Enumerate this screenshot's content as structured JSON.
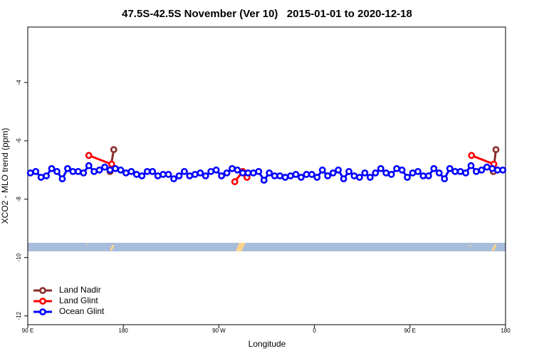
{
  "chart_data": {
    "type": "line",
    "title": "47.5S-42.5S November (Ver 10)   2015-01-01 to 2020-12-18",
    "xlabel": "Longitude",
    "ylabel": "XCO2 - MLO trend (ppm)",
    "xlim": [
      90,
      540
    ],
    "ylim": [
      -12.3,
      -2.1
    ],
    "xticks": [
      {
        "value": 90,
        "label": "90 E"
      },
      {
        "value": 180,
        "label": "180"
      },
      {
        "value": 270,
        "label": "90 W"
      },
      {
        "value": 360,
        "label": "0"
      },
      {
        "value": 450,
        "label": "90 E"
      },
      {
        "value": 540,
        "label": "180"
      }
    ],
    "yticks": [
      -4,
      -6,
      -8,
      -10,
      -12
    ],
    "legend": "lower left",
    "series": [
      {
        "name": "Land Nadir",
        "color": "#8b2b2b",
        "x": [
          167.5,
          171,
          null,
          528.5,
          531
        ],
        "values": [
          -7.05,
          -6.3,
          null,
          -7.05,
          -6.3
        ]
      },
      {
        "name": "Land Glint",
        "color": "#ff0000",
        "x": [
          147.5,
          169,
          null,
          285,
          292.5,
          296.5,
          null,
          508,
          529
        ],
        "values": [
          -6.5,
          -6.8,
          null,
          -7.4,
          -7.05,
          -7.25,
          null,
          -6.5,
          -6.8
        ]
      },
      {
        "name": "Ocean Glint",
        "color": "#0000ff",
        "x": [
          92.5,
          97.5,
          102.5,
          107.5,
          112.5,
          117.5,
          122.5,
          127.5,
          132.5,
          137.5,
          142.5,
          147.5,
          152.5,
          157.5,
          162.5,
          167.5,
          172.5,
          177.5,
          182.5,
          187.5,
          192.5,
          197.5,
          202.5,
          207.5,
          212.5,
          217.5,
          222.5,
          227.5,
          232.5,
          237.5,
          242.5,
          247.5,
          252.5,
          257.5,
          262.5,
          267.5,
          272.5,
          277.5,
          282.5,
          287.5,
          292.5,
          297.5,
          302.5,
          307.5,
          312.5,
          317.5,
          322.5,
          327.5,
          332.5,
          337.5,
          342.5,
          347.5,
          352.5,
          357.5,
          362.5,
          367.5,
          372.5,
          377.5,
          382.5,
          387.5,
          392.5,
          397.5,
          402.5,
          407.5,
          412.5,
          417.5,
          422.5,
          427.5,
          432.5,
          437.5,
          442.5,
          447.5,
          452.5,
          457.5,
          462.5,
          467.5,
          472.5,
          477.5,
          482.5,
          487.5,
          492.5,
          497.5,
          502.5,
          507.5,
          512.5,
          517.5,
          522.5,
          527.5,
          532.5,
          537.5
        ],
        "values": [
          -7.1,
          -7.05,
          -7.25,
          -7.2,
          -6.95,
          -7.05,
          -7.3,
          -6.95,
          -7.05,
          -7.05,
          -7.1,
          -6.85,
          -7.05,
          -7.0,
          -6.9,
          -7.0,
          -6.95,
          -7.0,
          -7.1,
          -7.05,
          -7.15,
          -7.2,
          -7.05,
          -7.05,
          -7.2,
          -7.15,
          -7.15,
          -7.3,
          -7.2,
          -7.05,
          -7.2,
          -7.15,
          -7.1,
          -7.2,
          -7.05,
          -7.0,
          -7.2,
          -7.1,
          -6.95,
          -7.0,
          -7.1,
          -7.1,
          -7.1,
          -7.05,
          -7.35,
          -7.1,
          -7.2,
          -7.2,
          -7.25,
          -7.2,
          -7.15,
          -7.25,
          -7.15,
          -7.15,
          -7.25,
          -7.0,
          -7.2,
          -7.1,
          -7.0,
          -7.3,
          -7.05,
          -7.2,
          -7.25,
          -7.1,
          -7.25,
          -7.1,
          -6.95,
          -7.1,
          -7.15,
          -6.95,
          -7.0,
          -7.25,
          -7.1,
          -7.05,
          -7.2,
          -7.2,
          -6.95,
          -7.1,
          -7.3,
          -6.95,
          -7.05,
          -7.05,
          -7.1,
          -6.85,
          -7.05,
          -7.0,
          -6.9,
          -6.95,
          -7.0,
          -7.0
        ]
      }
    ]
  }
}
